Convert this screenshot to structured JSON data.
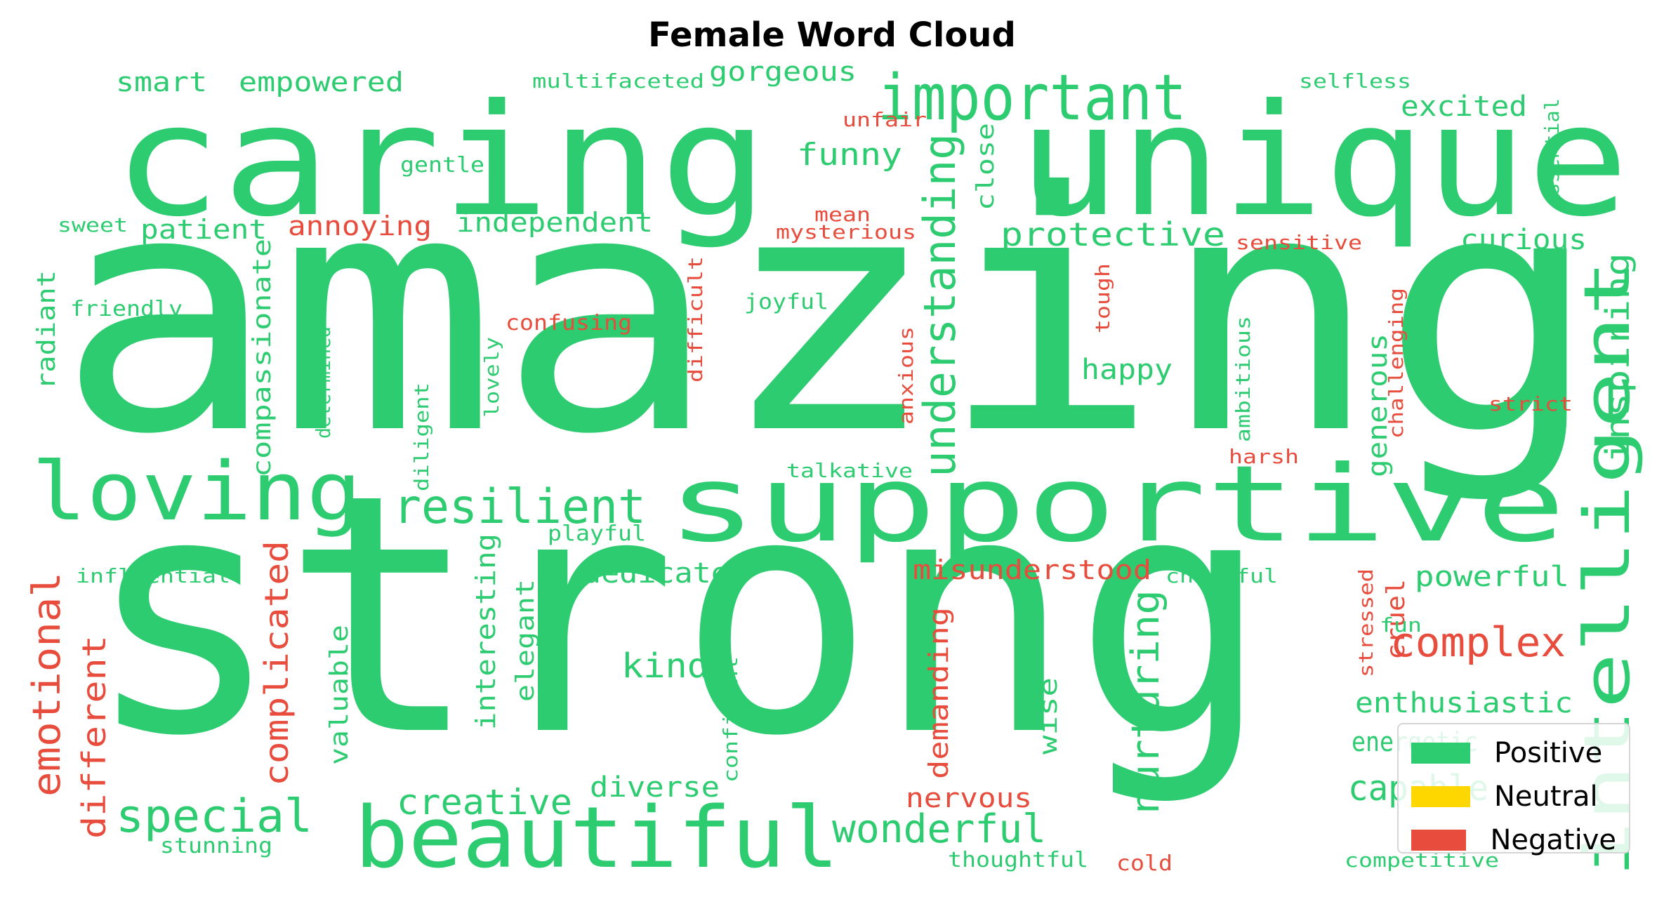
{
  "chart_data": {
    "type": "wordcloud",
    "title": "Female Word Cloud",
    "colors": {
      "positive": "#2ecc71",
      "neutral": "#ffd700",
      "negative": "#e74c3c"
    },
    "legend": {
      "placement": "bottom-right",
      "entries": [
        {
          "label": "Positive",
          "color": "#2ecc71"
        },
        {
          "label": "Neutral",
          "color": "#ffd700"
        },
        {
          "label": "Negative",
          "color": "#e74c3c"
        }
      ]
    },
    "words": [
      {
        "text": "amazing",
        "sentiment": "positive",
        "weight": 1.0
      },
      {
        "text": "strong",
        "sentiment": "positive",
        "weight": 0.95
      },
      {
        "text": "caring",
        "sentiment": "positive",
        "weight": 0.62
      },
      {
        "text": "unique",
        "sentiment": "positive",
        "weight": 0.55
      },
      {
        "text": "supportive",
        "sentiment": "positive",
        "weight": 0.45
      },
      {
        "text": "beautiful",
        "sentiment": "positive",
        "weight": 0.33
      },
      {
        "text": "loving",
        "sentiment": "positive",
        "weight": 0.3
      },
      {
        "text": "intelligent",
        "sentiment": "positive",
        "weight": 0.26
      },
      {
        "text": "important",
        "sentiment": "positive",
        "weight": 0.24
      },
      {
        "text": "understanding",
        "sentiment": "positive",
        "weight": 0.2
      },
      {
        "text": "resilient",
        "sentiment": "positive",
        "weight": 0.19
      },
      {
        "text": "special",
        "sentiment": "positive",
        "weight": 0.18
      },
      {
        "text": "complex",
        "sentiment": "negative",
        "weight": 0.16
      },
      {
        "text": "emotional",
        "sentiment": "negative",
        "weight": 0.16
      },
      {
        "text": "nurturing",
        "sentiment": "positive",
        "weight": 0.15
      },
      {
        "text": "wonderful",
        "sentiment": "positive",
        "weight": 0.15
      },
      {
        "text": "capable",
        "sentiment": "positive",
        "weight": 0.15
      },
      {
        "text": "creative",
        "sentiment": "positive",
        "weight": 0.14
      },
      {
        "text": "complicated",
        "sentiment": "negative",
        "weight": 0.13
      },
      {
        "text": "different",
        "sentiment": "negative",
        "weight": 0.13
      },
      {
        "text": "protective",
        "sentiment": "positive",
        "weight": 0.13
      },
      {
        "text": "inspiring",
        "sentiment": "positive",
        "weight": 0.13
      },
      {
        "text": "kind",
        "sentiment": "positive",
        "weight": 0.12
      },
      {
        "text": "funny",
        "sentiment": "positive",
        "weight": 0.12
      },
      {
        "text": "compassionate",
        "sentiment": "positive",
        "weight": 0.11
      },
      {
        "text": "diverse",
        "sentiment": "positive",
        "weight": 0.11
      },
      {
        "text": "interesting",
        "sentiment": "positive",
        "weight": 0.11
      },
      {
        "text": "dedicated",
        "sentiment": "positive",
        "weight": 0.11
      },
      {
        "text": "generous",
        "sentiment": "positive",
        "weight": 0.1
      },
      {
        "text": "happy",
        "sentiment": "positive",
        "weight": 0.1
      },
      {
        "text": "powerful",
        "sentiment": "positive",
        "weight": 0.1
      },
      {
        "text": "enthusiastic",
        "sentiment": "positive",
        "weight": 0.1
      },
      {
        "text": "curious",
        "sentiment": "positive",
        "weight": 0.1
      },
      {
        "text": "excited",
        "sentiment": "positive",
        "weight": 0.1
      },
      {
        "text": "misunderstood",
        "sentiment": "negative",
        "weight": 0.1
      },
      {
        "text": "demanding",
        "sentiment": "negative",
        "weight": 0.1
      },
      {
        "text": "nervous",
        "sentiment": "negative",
        "weight": 0.1
      },
      {
        "text": "radiant",
        "sentiment": "positive",
        "weight": 0.1
      },
      {
        "text": "independent",
        "sentiment": "positive",
        "weight": 0.1
      },
      {
        "text": "empowered",
        "sentiment": "positive",
        "weight": 0.1
      },
      {
        "text": "smart",
        "sentiment": "positive",
        "weight": 0.1
      },
      {
        "text": "gorgeous",
        "sentiment": "positive",
        "weight": 0.1
      },
      {
        "text": "patient",
        "sentiment": "positive",
        "weight": 0.1
      },
      {
        "text": "annoying",
        "sentiment": "negative",
        "weight": 0.1
      },
      {
        "text": "elegant",
        "sentiment": "positive",
        "weight": 0.09
      },
      {
        "text": "valuable",
        "sentiment": "positive",
        "weight": 0.09
      },
      {
        "text": "wise",
        "sentiment": "positive",
        "weight": 0.09
      },
      {
        "text": "close",
        "sentiment": "positive",
        "weight": 0.09
      },
      {
        "text": "cruel",
        "sentiment": "negative",
        "weight": 0.09
      },
      {
        "text": "energetic",
        "sentiment": "positive",
        "weight": 0.09
      },
      {
        "text": "determined",
        "sentiment": "positive",
        "weight": 0.07
      },
      {
        "text": "diligent",
        "sentiment": "positive",
        "weight": 0.07
      },
      {
        "text": "difficult",
        "sentiment": "negative",
        "weight": 0.07
      },
      {
        "text": "confusing",
        "sentiment": "negative",
        "weight": 0.07
      },
      {
        "text": "joyful",
        "sentiment": "positive",
        "weight": 0.07
      },
      {
        "text": "lovely",
        "sentiment": "positive",
        "weight": 0.07
      },
      {
        "text": "friendly",
        "sentiment": "positive",
        "weight": 0.07
      },
      {
        "text": "influential",
        "sentiment": "positive",
        "weight": 0.07
      },
      {
        "text": "playful",
        "sentiment": "positive",
        "weight": 0.07
      },
      {
        "text": "talkative",
        "sentiment": "positive",
        "weight": 0.07
      },
      {
        "text": "anxious",
        "sentiment": "negative",
        "weight": 0.07
      },
      {
        "text": "tough",
        "sentiment": "negative",
        "weight": 0.07
      },
      {
        "text": "ambitious",
        "sentiment": "positive",
        "weight": 0.07
      },
      {
        "text": "challenging",
        "sentiment": "negative",
        "weight": 0.07
      },
      {
        "text": "harsh",
        "sentiment": "negative",
        "weight": 0.07
      },
      {
        "text": "strict",
        "sentiment": "negative",
        "weight": 0.07
      },
      {
        "text": "cheerful",
        "sentiment": "positive",
        "weight": 0.07
      },
      {
        "text": "stressed",
        "sentiment": "negative",
        "weight": 0.07
      },
      {
        "text": "fun",
        "sentiment": "positive",
        "weight": 0.07
      },
      {
        "text": "confident",
        "sentiment": "positive",
        "weight": 0.07
      },
      {
        "text": "thoughtful",
        "sentiment": "positive",
        "weight": 0.07
      },
      {
        "text": "cold",
        "sentiment": "negative",
        "weight": 0.07
      },
      {
        "text": "competitive",
        "sentiment": "positive",
        "weight": 0.07
      },
      {
        "text": "stunning",
        "sentiment": "positive",
        "weight": 0.07
      },
      {
        "text": "multifaceted",
        "sentiment": "positive",
        "weight": 0.07
      },
      {
        "text": "gentle",
        "sentiment": "positive",
        "weight": 0.07
      },
      {
        "text": "sweet",
        "sentiment": "positive",
        "weight": 0.07
      },
      {
        "text": "unfair",
        "sentiment": "negative",
        "weight": 0.07
      },
      {
        "text": "mean",
        "sentiment": "negative",
        "weight": 0.07
      },
      {
        "text": "mysterious",
        "sentiment": "negative",
        "weight": 0.07
      },
      {
        "text": "sensitive",
        "sentiment": "negative",
        "weight": 0.07
      },
      {
        "text": "selfless",
        "sentiment": "positive",
        "weight": 0.07
      },
      {
        "text": "essential",
        "sentiment": "positive",
        "weight": 0.07
      }
    ]
  }
}
